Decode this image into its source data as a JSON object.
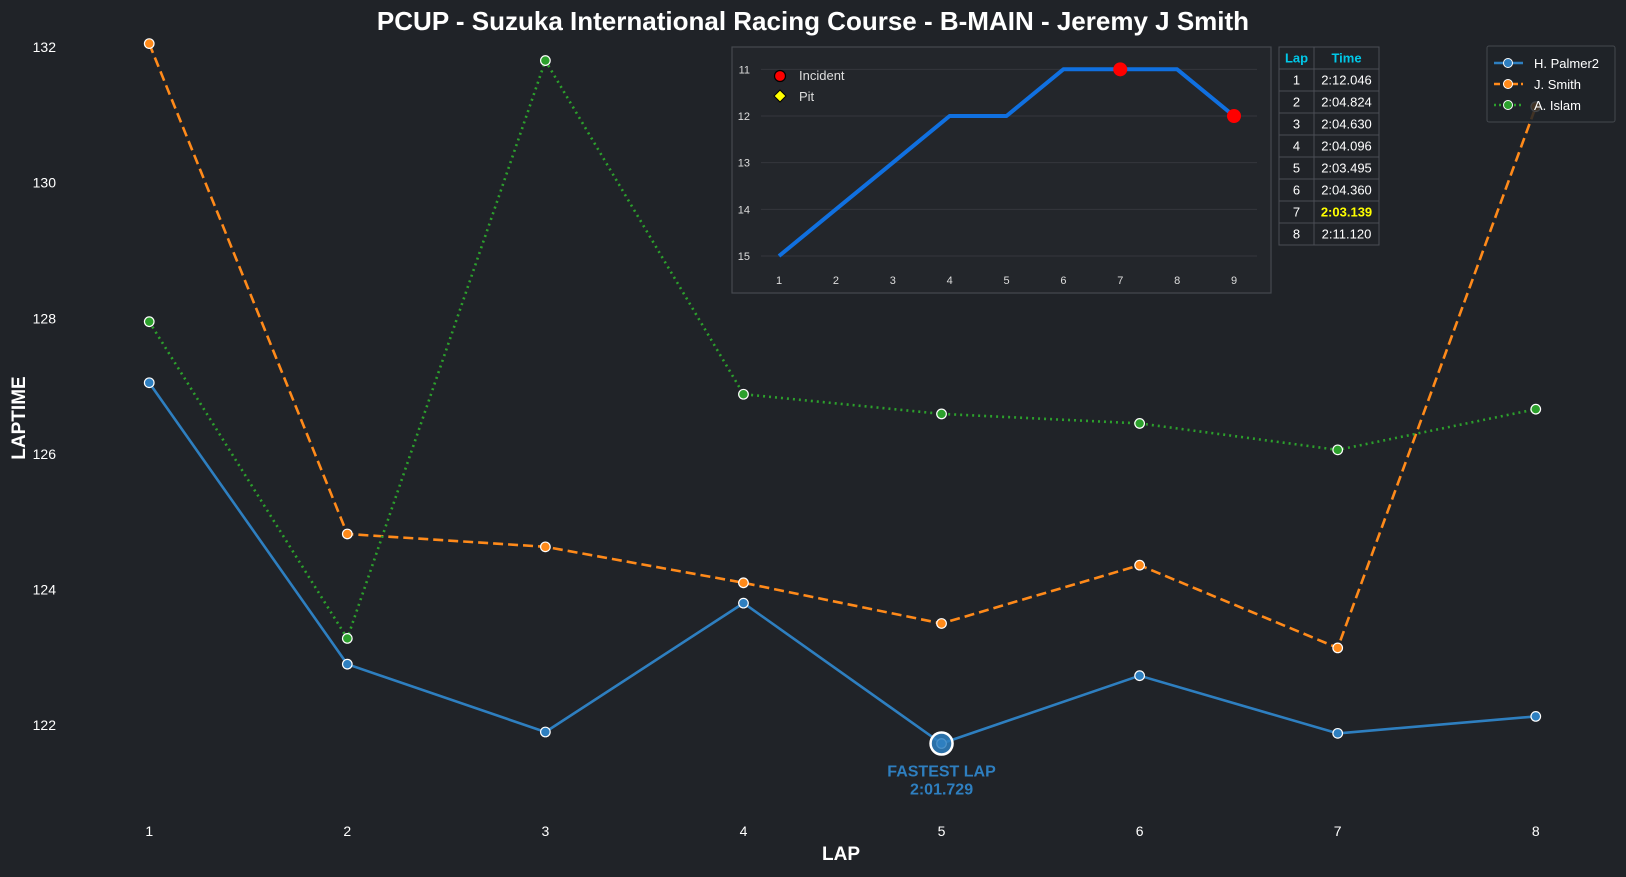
{
  "chart_data": [
    {
      "type": "line",
      "title": "PCUP - Suzuka International Racing Course - B-MAIN - Jeremy J Smith",
      "xlabel": "LAP",
      "ylabel": "LAPTIME",
      "x": [
        1,
        2,
        3,
        4,
        5,
        6,
        7,
        8
      ],
      "xlim": [
        0.6,
        8.4
      ],
      "ylim": [
        120.75,
        132.0
      ],
      "yticks": [
        122,
        124,
        126,
        128,
        130,
        132
      ],
      "grid": false,
      "legend_position": "top-right",
      "series": [
        {
          "name": "H. Palmer2",
          "color": "#2e7fc0",
          "style": "solid",
          "values": [
            127.05,
            122.9,
            121.9,
            123.8,
            121.73,
            122.73,
            121.88,
            122.13
          ]
        },
        {
          "name": "J. Smith",
          "color": "#ff8a1a",
          "style": "dashed",
          "values": [
            132.05,
            124.82,
            124.63,
            124.1,
            123.5,
            124.36,
            123.14,
            131.12
          ]
        },
        {
          "name": "A. Islam",
          "color": "#2ca02c",
          "style": "dotted",
          "values": [
            127.95,
            123.28,
            131.8,
            126.88,
            126.59,
            126.45,
            126.06,
            126.66
          ]
        }
      ],
      "annotation": {
        "x": 5,
        "y": 121.73,
        "line1": "FASTEST LAP",
        "line2": "2:01.729",
        "color": "#2e7fc0"
      }
    },
    {
      "type": "line",
      "title": "",
      "x": [
        1,
        2,
        3,
        4,
        5,
        6,
        7,
        8,
        9
      ],
      "values": [
        15,
        14,
        13,
        12,
        12,
        11,
        11,
        11,
        12
      ],
      "ylim": [
        15.3,
        10.8
      ],
      "yticks": [
        11,
        12,
        13,
        14,
        15
      ],
      "y_inverted": true,
      "grid": true,
      "color": "#1070e0",
      "incidents": [
        {
          "x": 7,
          "y": 11
        },
        {
          "x": 9,
          "y": 12
        }
      ],
      "legend": [
        {
          "label": "Incident",
          "marker": "circle",
          "color": "#ff0000"
        },
        {
          "label": "Pit",
          "marker": "diamond",
          "color": "#ffff00"
        }
      ]
    },
    {
      "type": "table",
      "columns": [
        "Lap",
        "Time"
      ],
      "rows": [
        [
          "1",
          "2:12.046"
        ],
        [
          "2",
          "2:04.824"
        ],
        [
          "3",
          "2:04.630"
        ],
        [
          "4",
          "2:04.096"
        ],
        [
          "5",
          "2:03.495"
        ],
        [
          "6",
          "2:04.360"
        ],
        [
          "7",
          "2:03.139"
        ],
        [
          "8",
          "2:11.120"
        ]
      ],
      "highlight_row": 6,
      "header_color": "#00c8e8",
      "highlight_color": "#ffff00"
    }
  ]
}
